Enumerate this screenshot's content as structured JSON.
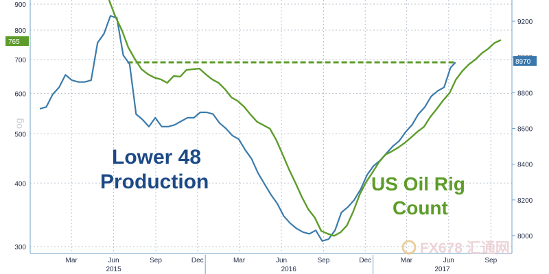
{
  "chart_data": {
    "type": "line",
    "log_scale_left": true,
    "grid": true,
    "left_axis_ticks": [
      "300",
      "400",
      "500",
      "600",
      "700",
      "800",
      "900"
    ],
    "right_axis_ticks": [
      "8000",
      "8200",
      "8400",
      "8600",
      "8800",
      "9000",
      "9200"
    ],
    "x_month_labels": [
      "Mar",
      "Jun",
      "Sep",
      "Dec",
      "Mar",
      "Jun",
      "Sep",
      "Dec",
      "Mar",
      "Jun",
      "Sep"
    ],
    "x_year_labels": [
      "2015",
      "2016",
      "2017"
    ],
    "annotations": {
      "lower48_line1": "Lower 48",
      "lower48_line2": "Production",
      "rig_line1": "US Oil Rig",
      "rig_line2": "Count"
    },
    "last_value_tags": {
      "rig": "765",
      "production": "8970"
    },
    "ylabel_fragment": "og",
    "colors": {
      "rig": "#5d9c2a",
      "production": "#3b7bab",
      "rig_dashed": "#5d9c2a",
      "axis": "#6fa1c9",
      "grid": "#b9c3cf",
      "prod_tag": "#3a77ad",
      "rig_tag": "#5d9c2a"
    },
    "series": [
      {
        "name": "US Oil Rig Count",
        "axis": "left",
        "color": "#5d9c2a",
        "x": [
          "2015-06-05",
          "2015-06-19",
          "2015-07-03",
          "2015-07-17",
          "2015-08-01",
          "2015-08-15",
          "2015-08-29",
          "2015-09-12",
          "2015-09-26",
          "2015-10-10",
          "2015-10-24",
          "2015-11-07",
          "2015-11-21",
          "2015-12-05",
          "2015-12-19",
          "2016-01-02",
          "2016-01-16",
          "2016-01-30",
          "2016-02-13",
          "2016-02-27",
          "2016-03-12",
          "2016-03-26",
          "2016-04-09",
          "2016-04-23",
          "2016-05-07",
          "2016-05-21",
          "2016-06-04",
          "2016-06-18",
          "2016-07-02",
          "2016-07-16",
          "2016-07-30",
          "2016-08-13",
          "2016-08-27",
          "2016-09-10",
          "2016-09-24",
          "2016-10-08",
          "2016-10-22",
          "2016-11-05",
          "2016-11-19",
          "2016-12-03",
          "2016-12-17",
          "2016-12-31",
          "2017-01-14",
          "2017-01-28",
          "2017-02-11",
          "2017-02-25",
          "2017-03-11",
          "2017-03-25",
          "2017-04-08",
          "2017-04-22",
          "2017-05-06",
          "2017-05-20",
          "2017-06-03",
          "2017-06-17",
          "2017-07-01",
          "2017-07-15",
          "2017-07-29",
          "2017-08-12",
          "2017-08-26",
          "2017-09-09",
          "2017-09-23",
          "2017-10-07"
        ],
        "values": [
          920,
          850,
          800,
          740,
          700,
          670,
          655,
          645,
          640,
          630,
          650,
          648,
          668,
          670,
          672,
          655,
          640,
          630,
          612,
          590,
          580,
          565,
          545,
          528,
          520,
          512,
          486,
          455,
          425,
          400,
          375,
          355,
          342,
          322,
          318,
          315,
          320,
          330,
          352,
          380,
          402,
          420,
          440,
          455,
          462,
          470,
          480,
          492,
          505,
          516,
          540,
          560,
          582,
          602,
          640,
          665,
          685,
          700,
          720,
          735,
          755,
          765
        ]
      },
      {
        "name": "Lower 48 Production",
        "axis": "right",
        "color": "#3b7bab",
        "x": [
          "2015-01-05",
          "2015-01-19",
          "2015-02-02",
          "2015-02-16",
          "2015-03-02",
          "2015-03-16",
          "2015-03-30",
          "2015-04-13",
          "2015-04-27",
          "2015-05-11",
          "2015-05-25",
          "2015-06-08",
          "2015-06-22",
          "2015-07-06",
          "2015-07-20",
          "2015-08-03",
          "2015-08-17",
          "2015-08-31",
          "2015-09-14",
          "2015-09-28",
          "2015-10-12",
          "2015-10-26",
          "2015-11-09",
          "2015-11-23",
          "2015-12-07",
          "2015-12-21",
          "2016-01-04",
          "2016-01-18",
          "2016-02-01",
          "2016-02-15",
          "2016-02-29",
          "2016-03-14",
          "2016-03-28",
          "2016-04-11",
          "2016-04-25",
          "2016-05-09",
          "2016-05-23",
          "2016-06-06",
          "2016-06-20",
          "2016-07-04",
          "2016-07-18",
          "2016-08-01",
          "2016-08-15",
          "2016-08-29",
          "2016-09-12",
          "2016-09-26",
          "2016-10-10",
          "2016-10-24",
          "2016-11-07",
          "2016-11-21",
          "2016-12-05",
          "2016-12-19",
          "2017-01-02",
          "2017-01-16",
          "2017-01-30",
          "2017-02-13",
          "2017-02-27",
          "2017-03-13",
          "2017-03-27",
          "2017-04-10",
          "2017-04-24",
          "2017-05-08",
          "2017-05-22",
          "2017-06-05",
          "2017-06-19",
          "2017-06-30"
        ],
        "values": [
          8710,
          8720,
          8790,
          8830,
          8900,
          8870,
          8860,
          8860,
          8870,
          9080,
          9130,
          9230,
          9220,
          9010,
          8960,
          8680,
          8650,
          8610,
          8660,
          8610,
          8610,
          8620,
          8640,
          8660,
          8660,
          8690,
          8690,
          8680,
          8630,
          8600,
          8560,
          8540,
          8480,
          8430,
          8350,
          8290,
          8230,
          8180,
          8110,
          8070,
          8040,
          8020,
          8010,
          8030,
          7970,
          7980,
          8030,
          8130,
          8160,
          8200,
          8260,
          8340,
          8390,
          8420,
          8460,
          8500,
          8530,
          8580,
          8620,
          8680,
          8720,
          8780,
          8810,
          8830,
          8940,
          8970
        ]
      }
    ]
  }
}
